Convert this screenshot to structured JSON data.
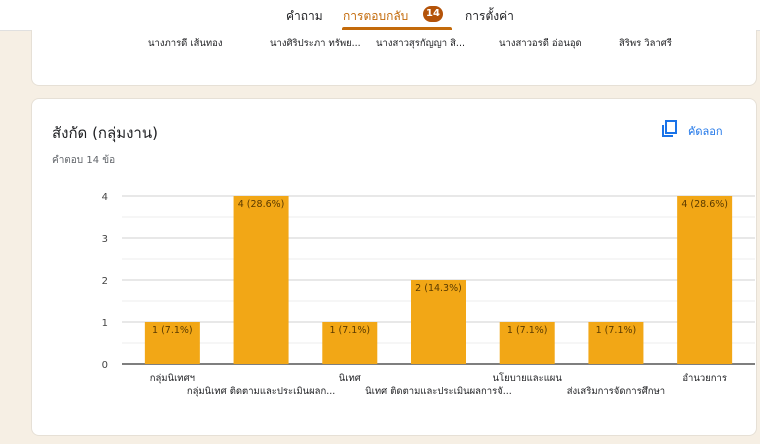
{
  "tabs": [
    {
      "label": "คำถาม"
    },
    {
      "label": "การตอบกลับ",
      "badge": "14"
    },
    {
      "label": "การตั้งค่า"
    }
  ],
  "prev_card": {
    "names": [
      "นางภารดี เส้นทอง",
      "นางศิริประภา ทรัพย...",
      "นางสาวสุรกัญญา สิ...",
      "นางสาวอรดี อ่อนอุด",
      "สิริพร วิลาศรี"
    ]
  },
  "question": {
    "title": "สังกัด (กลุ่มงาน)",
    "responses_text": "คำตอบ 14 ข้อ",
    "copy_label": "คัดลอก"
  },
  "colors": {
    "bar": "#f2a716",
    "accent": "#c36a0a",
    "link": "#1a73e8"
  },
  "chart_data": {
    "type": "bar",
    "ylim": [
      0,
      4
    ],
    "yticks": [
      "0",
      "1",
      "2",
      "3",
      "4"
    ],
    "grid": true,
    "bars": [
      {
        "value": 1,
        "label": "1 (7.1%)",
        "category": "กลุ่มนิเทศฯ",
        "row": 0
      },
      {
        "value": 4,
        "label": "4 (28.6%)",
        "category": "กลุ่มนิเทศ ติดตามและประเมินผลก...",
        "row": 1
      },
      {
        "value": 1,
        "label": "1 (7.1%)",
        "category": "นิเทศ",
        "row": 0
      },
      {
        "value": 2,
        "label": "2 (14.3%)",
        "category": "นิเทศ ติดตามและประเมินผลการจั...",
        "row": 1
      },
      {
        "value": 1,
        "label": "1 (7.1%)",
        "category": "นโยบายและแผน",
        "row": 0
      },
      {
        "value": 1,
        "label": "1 (7.1%)",
        "category": "ส่งเสริมการจัดการศึกษา",
        "row": 1
      },
      {
        "value": 4,
        "label": "4 (28.6%)",
        "category": "อำนวยการ",
        "row": 0
      }
    ]
  }
}
